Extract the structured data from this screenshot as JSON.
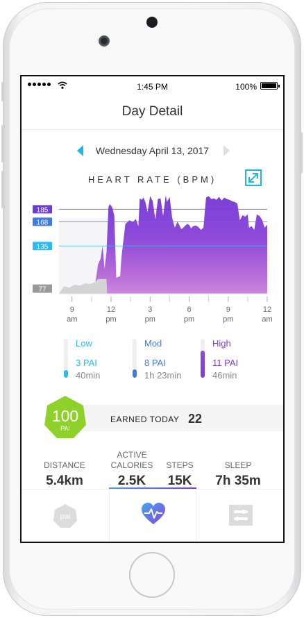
{
  "status_bar": {
    "time": "1:45 PM",
    "battery": "100%"
  },
  "nav": {
    "title": "Day Detail"
  },
  "date": {
    "label": "Wednesday April 13, 2017"
  },
  "chart_title": "HEART RATE (BPM)",
  "chart_data": {
    "type": "area",
    "title": "HEART RATE (BPM)",
    "thresholds": [
      {
        "value": 185,
        "label": "185",
        "color": "#6d3fd0"
      },
      {
        "value": 168,
        "label": "168",
        "color": "#3e7ae0"
      },
      {
        "value": 135,
        "label": "135",
        "color": "#2bbcf0"
      },
      {
        "value": 77,
        "label": "77",
        "color": "#9a9a9a"
      }
    ],
    "ylim": [
      70,
      210
    ],
    "xlim": [
      8.0,
      24.0
    ],
    "x_ticks": [
      {
        "x": 9,
        "top": "9",
        "bottom": "am"
      },
      {
        "x": 12,
        "top": "12",
        "bottom": "pm"
      },
      {
        "x": 15,
        "top": "3",
        "bottom": "pm"
      },
      {
        "x": 18,
        "top": "6",
        "bottom": "pm"
      },
      {
        "x": 21,
        "top": "9",
        "bottom": "pm"
      },
      {
        "x": 24,
        "top": "12",
        "bottom": "am"
      }
    ],
    "series": [
      {
        "x": [
          8.0,
          8.4,
          8.8,
          9.2,
          9.6,
          10.0,
          10.4,
          10.8,
          11.0,
          11.2,
          11.35,
          11.5,
          11.65,
          11.8,
          11.9,
          12.0,
          12.1,
          12.25,
          12.4,
          12.55,
          12.7,
          12.8,
          13.1,
          13.4,
          13.7,
          13.9,
          14.1,
          14.2,
          14.35,
          14.5,
          14.65,
          14.8,
          15.0,
          15.2,
          15.4,
          15.6,
          15.8,
          16.0,
          16.2,
          16.3,
          16.5,
          16.7,
          16.9,
          17.1,
          17.2,
          17.4,
          17.55,
          17.7,
          17.85,
          18.0,
          18.15,
          18.3,
          18.5,
          18.7,
          18.9,
          19.1,
          19.3,
          19.5,
          19.7,
          19.9,
          20.1,
          20.3,
          20.5,
          20.7,
          20.9,
          21.1,
          21.3,
          21.5,
          21.7,
          21.9,
          22.1,
          22.3,
          22.5,
          22.6,
          22.8,
          23.0,
          23.2,
          23.4,
          23.6,
          23.8,
          24.0
        ],
        "y": [
          70,
          80,
          78,
          82,
          81,
          84,
          83,
          86,
          110,
          118,
          135,
          104,
          126,
          188,
          192,
          190,
          187,
          176,
          92,
          93,
          94,
          120,
          165,
          170,
          168,
          172,
          162,
          200,
          198,
          201,
          194,
          181,
          203,
          196,
          171,
          199,
          200,
          176,
          204,
          195,
          202,
          173,
          160,
          168,
          165,
          158,
          160,
          163,
          165,
          164,
          159,
          162,
          163,
          161,
          157,
          160,
          201,
          203,
          199,
          200,
          198,
          202,
          197,
          201,
          199,
          198,
          196,
          195,
          193,
          170,
          177,
          175,
          178,
          160,
          162,
          157,
          178,
          176,
          171,
          160,
          164
        ]
      }
    ]
  },
  "zones": [
    {
      "name": "Low",
      "pai": "3 PAI",
      "duration": "40min",
      "color": "#2bbcf0",
      "fill_fraction": 0.2
    },
    {
      "name": "Mod",
      "pai": "8 PAI",
      "duration": "1h 23min",
      "color": "#3e7ae0",
      "fill_fraction": 0.22
    },
    {
      "name": "High",
      "pai": "11 PAI",
      "duration": "46min",
      "color": "#7b3fd6",
      "fill_fraction": 0.7
    }
  ],
  "pai": {
    "score": "100",
    "unit": "PAI",
    "earned_label": "EARNED TODAY",
    "earned_value": "22",
    "badge_color": "#8ed12b"
  },
  "stats": [
    {
      "label": "DISTANCE",
      "value": "5.4km"
    },
    {
      "label": "ACTIVE\nCALORIES",
      "value": "2.5K"
    },
    {
      "label": "STEPS",
      "value": "15K"
    },
    {
      "label": "SLEEP",
      "value": "7h 35m"
    }
  ],
  "tabs": [
    {
      "icon": "pai-hex-icon",
      "label": "pai"
    },
    {
      "icon": "heart-rate-icon"
    },
    {
      "icon": "settings-toggles-icon"
    }
  ]
}
